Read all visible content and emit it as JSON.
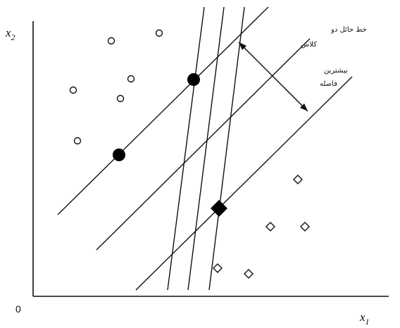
{
  "axes": {
    "y_label": "x",
    "y_label_sub": "2",
    "x_label": "x",
    "x_label_sub": "1",
    "origin": "0"
  },
  "annotations": {
    "separator_line1": "خط حائل دو",
    "separator_line2": "کلاس",
    "margin_line1": "بیشترین",
    "margin_line2": "فاصله"
  },
  "legend_markers": {
    "class_circle": "open-circle",
    "class_diamond": "open-diamond",
    "support_vector_circle": "filled-circle",
    "support_vector_diamond": "filled-diamond"
  },
  "colors": {
    "ink": "#111111",
    "background": "#ffffff"
  }
}
